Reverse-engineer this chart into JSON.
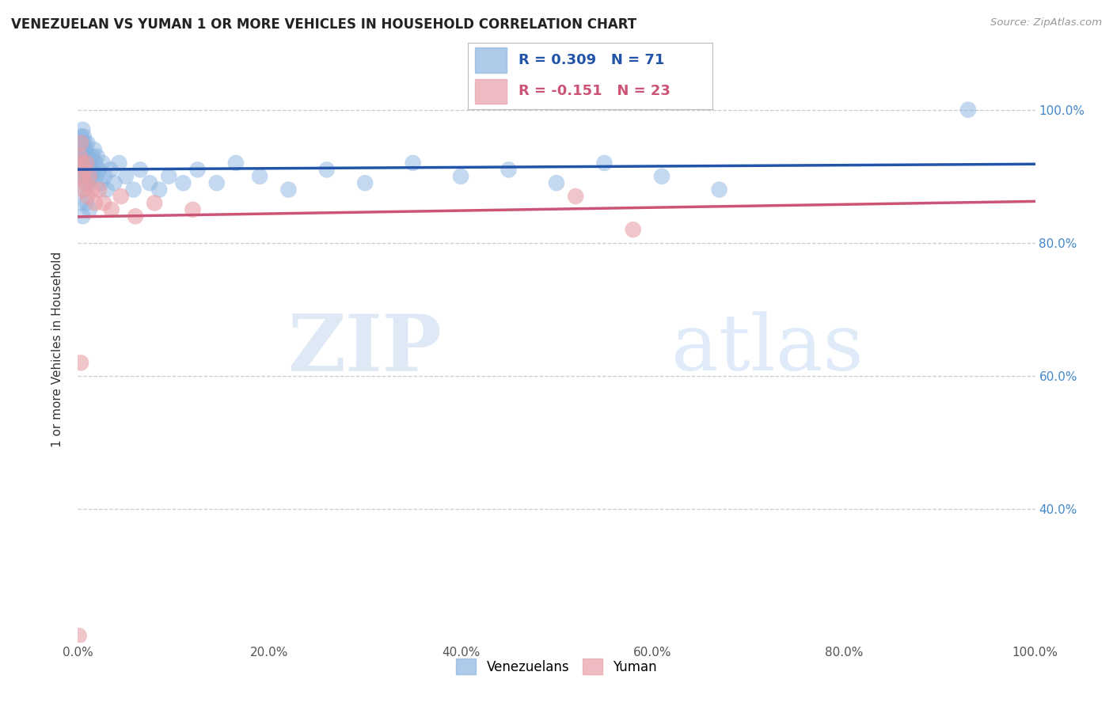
{
  "title": "VENEZUELAN VS YUMAN 1 OR MORE VEHICLES IN HOUSEHOLD CORRELATION CHART",
  "source": "Source: ZipAtlas.com",
  "ylabel": "1 or more Vehicles in Household",
  "xlim": [
    0.0,
    1.0
  ],
  "ylim": [
    0.2,
    1.08
  ],
  "ytick_positions": [
    0.4,
    0.6,
    0.8,
    1.0
  ],
  "ytick_labels": [
    "40.0%",
    "60.0%",
    "80.0%",
    "100.0%"
  ],
  "xtick_positions": [
    0.0,
    0.2,
    0.4,
    0.6,
    0.8,
    1.0
  ],
  "xtick_labels": [
    "0.0%",
    "20.0%",
    "40.0%",
    "60.0%",
    "80.0%",
    "100.0%"
  ],
  "venezuelan_R": 0.309,
  "venezuelan_N": 71,
  "yuman_R": -0.151,
  "yuman_N": 23,
  "blue_color": "#8ab4e0",
  "pink_color": "#e8a0a8",
  "blue_line_color": "#2255aa",
  "pink_line_color": "#cc5577",
  "background_color": "#ffffff",
  "venezuelan_x": [
    0.001,
    0.002,
    0.002,
    0.003,
    0.003,
    0.003,
    0.004,
    0.004,
    0.004,
    0.005,
    0.005,
    0.005,
    0.006,
    0.006,
    0.006,
    0.007,
    0.007,
    0.008,
    0.008,
    0.008,
    0.009,
    0.009,
    0.01,
    0.01,
    0.01,
    0.011,
    0.012,
    0.012,
    0.013,
    0.014,
    0.015,
    0.016,
    0.017,
    0.018,
    0.019,
    0.02,
    0.022,
    0.024,
    0.026,
    0.028,
    0.03,
    0.034,
    0.038,
    0.043,
    0.05,
    0.058,
    0.065,
    0.075,
    0.085,
    0.095,
    0.11,
    0.125,
    0.145,
    0.165,
    0.19,
    0.22,
    0.26,
    0.3,
    0.35,
    0.4,
    0.45,
    0.5,
    0.55,
    0.61,
    0.67,
    0.003,
    0.005,
    0.007,
    0.009,
    0.012,
    0.93
  ],
  "venezuelan_y": [
    0.93,
    0.95,
    0.92,
    0.96,
    0.94,
    0.91,
    0.95,
    0.93,
    0.9,
    0.97,
    0.94,
    0.92,
    0.96,
    0.93,
    0.91,
    0.95,
    0.92,
    0.94,
    0.91,
    0.89,
    0.93,
    0.9,
    0.95,
    0.92,
    0.9,
    0.93,
    0.91,
    0.89,
    0.92,
    0.9,
    0.93,
    0.91,
    0.94,
    0.92,
    0.9,
    0.93,
    0.91,
    0.89,
    0.92,
    0.9,
    0.88,
    0.91,
    0.89,
    0.92,
    0.9,
    0.88,
    0.91,
    0.89,
    0.88,
    0.9,
    0.89,
    0.91,
    0.89,
    0.92,
    0.9,
    0.88,
    0.91,
    0.89,
    0.92,
    0.9,
    0.91,
    0.89,
    0.92,
    0.9,
    0.88,
    0.86,
    0.84,
    0.88,
    0.86,
    0.85,
    1.0
  ],
  "yuman_x": [
    0.002,
    0.003,
    0.004,
    0.005,
    0.006,
    0.007,
    0.008,
    0.009,
    0.01,
    0.012,
    0.015,
    0.018,
    0.022,
    0.027,
    0.035,
    0.045,
    0.06,
    0.08,
    0.12,
    0.52,
    0.58,
    0.003,
    0.001
  ],
  "yuman_y": [
    0.93,
    0.95,
    0.92,
    0.9,
    0.88,
    0.91,
    0.89,
    0.92,
    0.87,
    0.9,
    0.88,
    0.86,
    0.88,
    0.86,
    0.85,
    0.87,
    0.84,
    0.86,
    0.85,
    0.87,
    0.82,
    0.62,
    0.21
  ]
}
